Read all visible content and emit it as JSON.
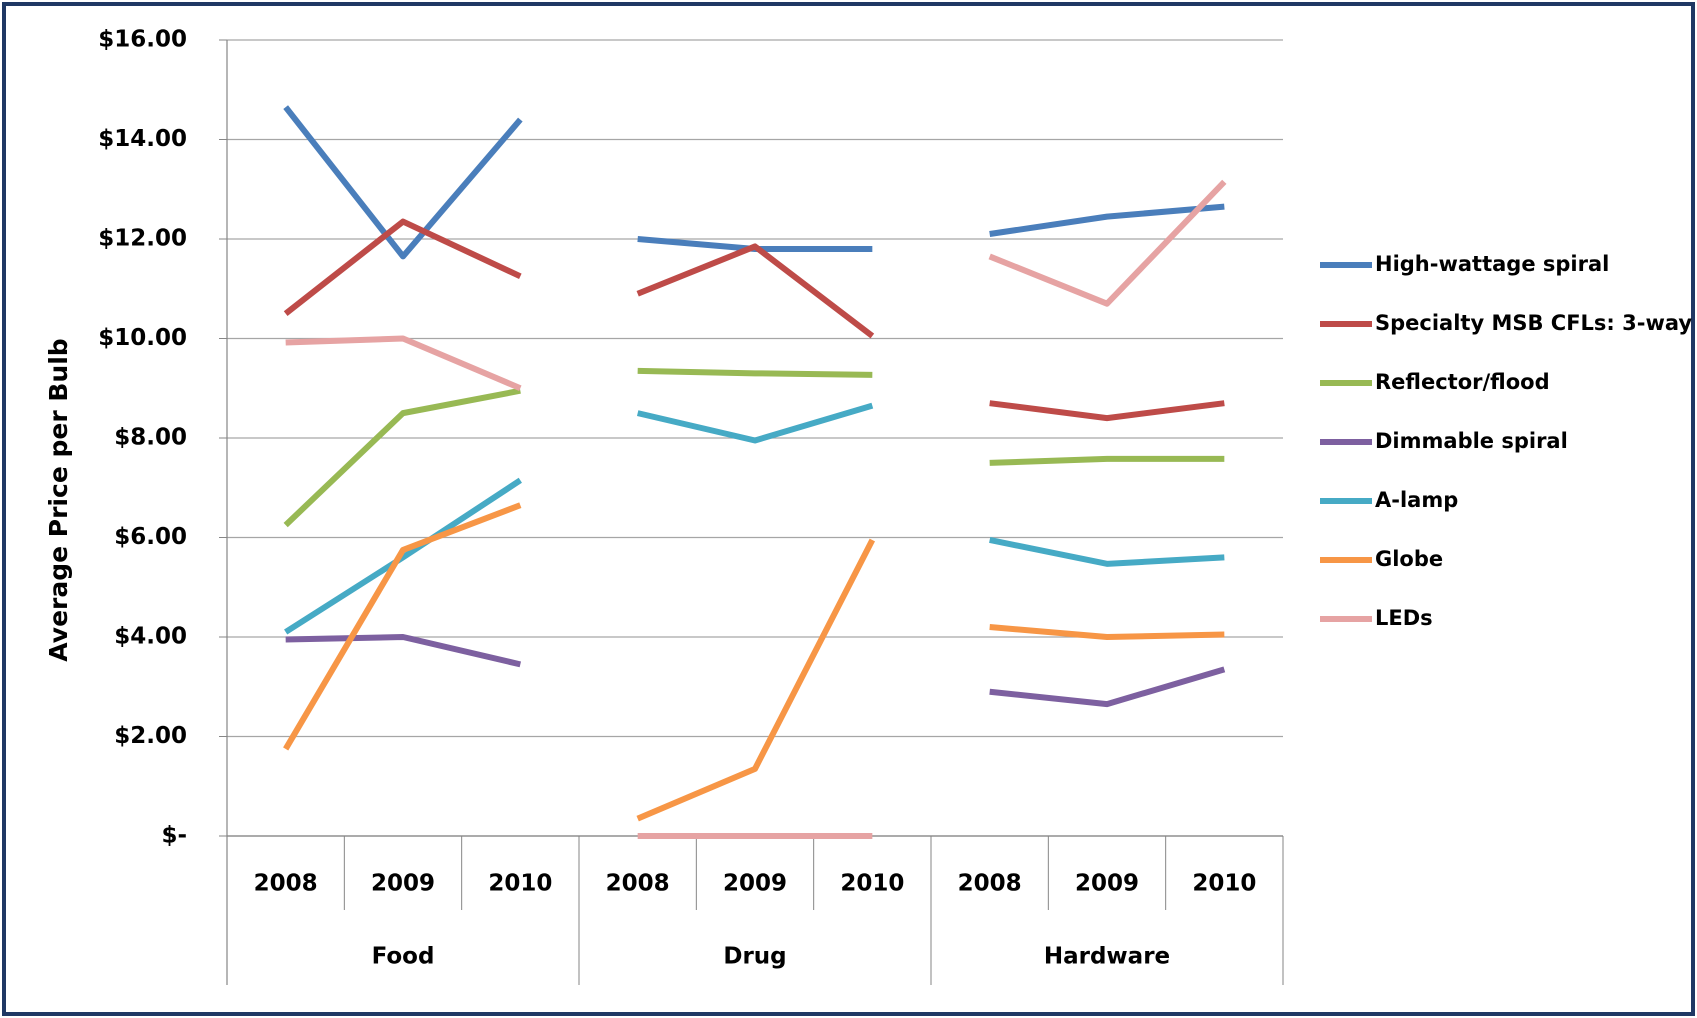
{
  "chart_data": {
    "type": "line",
    "y_axis_label": "Average Price per Bulb",
    "groups": [
      {
        "name": "Food",
        "categories": [
          "2008",
          "2009",
          "2010"
        ]
      },
      {
        "name": "Drug",
        "categories": [
          "2008",
          "2009",
          "2010"
        ]
      },
      {
        "name": "Hardware",
        "categories": [
          "2008",
          "2009",
          "2010"
        ]
      }
    ],
    "series": [
      {
        "name": "High-wattage spiral",
        "color": "#4a7ebb",
        "values": [
          14.65,
          11.65,
          14.4,
          12.0,
          11.8,
          11.8,
          12.1,
          12.45,
          12.65
        ]
      },
      {
        "name": "Specialty MSB CFLs: 3-way",
        "color": "#be4b48",
        "values": [
          10.5,
          12.35,
          11.25,
          10.9,
          11.85,
          10.05,
          8.7,
          8.4,
          8.7
        ]
      },
      {
        "name": "Reflector/flood",
        "color": "#98b954",
        "values": [
          6.25,
          8.5,
          8.95,
          9.35,
          9.3,
          9.27,
          7.5,
          7.58,
          7.58
        ]
      },
      {
        "name": "Dimmable spiral",
        "color": "#7d60a0",
        "values": [
          3.95,
          4.0,
          3.45,
          null,
          null,
          null,
          2.9,
          2.65,
          3.35
        ]
      },
      {
        "name": "A-lamp",
        "color": "#46aac5",
        "values": [
          4.1,
          5.6,
          7.15,
          8.5,
          7.95,
          8.65,
          5.95,
          5.47,
          5.6
        ]
      },
      {
        "name": "Globe",
        "color": "#f79646",
        "values": [
          1.75,
          5.75,
          6.65,
          0.35,
          1.35,
          5.95,
          4.2,
          4.0,
          4.05
        ]
      },
      {
        "name": "LEDs",
        "color": "#e6a3a3",
        "values": [
          9.92,
          10.0,
          9.0,
          0,
          0,
          0,
          11.65,
          10.7,
          13.15
        ]
      }
    ],
    "ylim": [
      0,
      16
    ],
    "yticks": [
      {
        "value": 0,
        "label": "$-"
      },
      {
        "value": 2,
        "label": "$2.00"
      },
      {
        "value": 4,
        "label": "$4.00"
      },
      {
        "value": 6,
        "label": "$6.00"
      },
      {
        "value": 8,
        "label": "$8.00"
      },
      {
        "value": 10,
        "label": "$10.00"
      },
      {
        "value": 12,
        "label": "$12.00"
      },
      {
        "value": 14,
        "label": "$14.00"
      },
      {
        "value": 16,
        "label": "$16.00"
      }
    ],
    "grid": true,
    "legend": "right"
  }
}
